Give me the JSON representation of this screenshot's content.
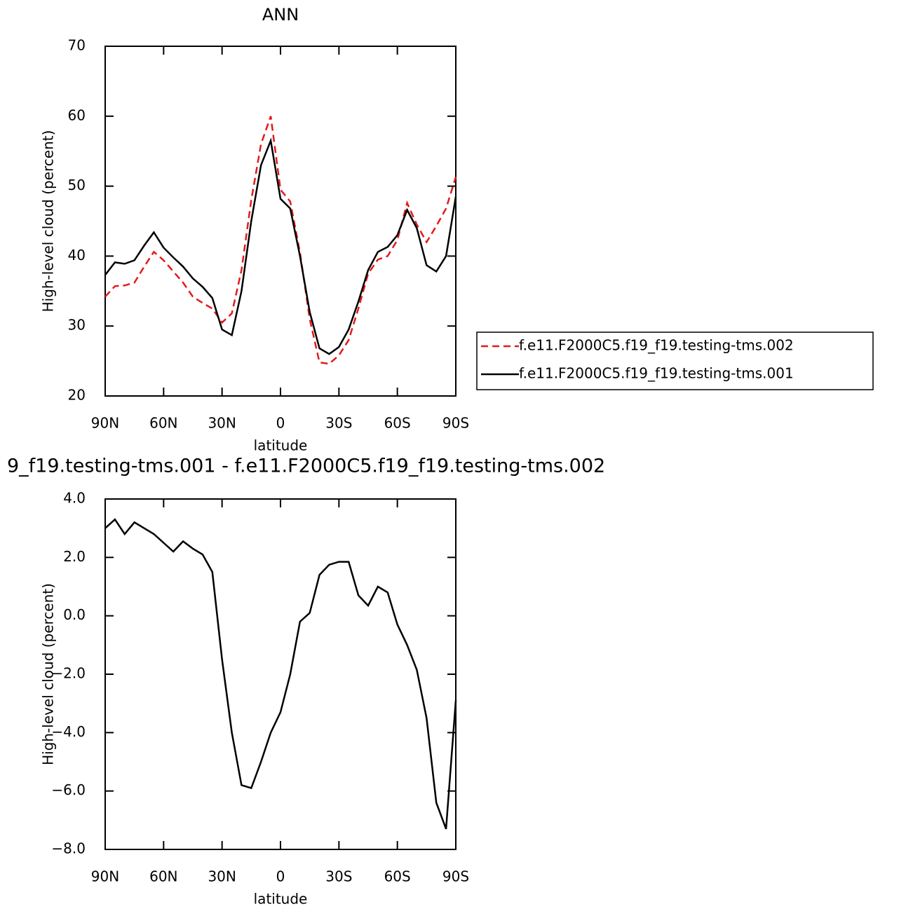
{
  "chart_data": [
    {
      "type": "line",
      "title": "ANN",
      "xlabel": "latitude",
      "ylabel": "High-level cloud (percent)",
      "x": [
        90,
        85,
        80,
        75,
        70,
        65,
        60,
        55,
        50,
        45,
        40,
        35,
        30,
        25,
        20,
        15,
        10,
        5,
        0,
        -5,
        -10,
        -15,
        -20,
        -25,
        -30,
        -35,
        -40,
        -45,
        -50,
        -55,
        -60,
        -65,
        -70,
        -75,
        -80,
        -85,
        -90
      ],
      "series": [
        {
          "name": "f.e11.F2000C5.f19_f19.testing-tms.002",
          "color": "#e41a1c",
          "line_style": "dashed",
          "values": [
            34.2,
            35.7,
            35.8,
            36.2,
            38.5,
            40.6,
            39.4,
            37.8,
            36.2,
            34.2,
            33.3,
            32.5,
            30.5,
            31.8,
            38,
            48,
            56,
            60,
            49.5,
            47.8,
            40.5,
            31,
            24.8,
            24.6,
            25.8,
            28,
            32.5,
            37.5,
            39.5,
            40,
            42.3,
            47.6,
            44.5,
            42,
            44.3,
            46.8,
            51.3
          ]
        },
        {
          "name": "f.e11.F2000C5.f19_f19.testing-tms.001",
          "color": "#000000",
          "line_style": "solid",
          "values": [
            37.3,
            39.1,
            38.9,
            39.4,
            41.5,
            43.4,
            41.2,
            39.8,
            38.5,
            36.8,
            35.6,
            34,
            29.5,
            28.7,
            35,
            45,
            53,
            56.5,
            48.2,
            46.8,
            40,
            32,
            26.8,
            26,
            27,
            29.5,
            33.5,
            38,
            40.6,
            41.3,
            43,
            46.6,
            44,
            38.7,
            37.8,
            40,
            48.5
          ]
        }
      ],
      "xlim": [
        90,
        -90
      ],
      "xticks": [
        {
          "value": 90,
          "label": "90N"
        },
        {
          "value": 60,
          "label": "60N"
        },
        {
          "value": 30,
          "label": "30N"
        },
        0,
        {
          "value": -30,
          "label": "30S"
        },
        {
          "value": -60,
          "label": "60S"
        },
        {
          "value": -90,
          "label": "90S"
        }
      ],
      "ylim": [
        20,
        70
      ],
      "yticks": [
        20,
        30,
        40,
        50,
        60,
        70
      ],
      "legend": "right"
    },
    {
      "type": "line",
      "title": "9_f19.testing-tms.001 - f.e11.F2000C5.f19_f19.testing-tms.002",
      "xlabel": "latitude",
      "ylabel": "High-level cloud (percent)",
      "x": [
        90,
        85,
        80,
        75,
        70,
        65,
        60,
        55,
        50,
        45,
        40,
        35,
        30,
        25,
        20,
        15,
        10,
        5,
        0,
        -5,
        -10,
        -15,
        -20,
        -25,
        -30,
        -35,
        -40,
        -45,
        -50,
        -55,
        -60,
        -65,
        -70,
        -75,
        -80,
        -85,
        -90
      ],
      "series": [
        {
          "color": "#000000",
          "line_style": "solid",
          "values": [
            3.0,
            3.3,
            2.8,
            3.2,
            3.0,
            2.8,
            2.5,
            2.2,
            2.55,
            2.3,
            2.1,
            1.5,
            -1.5,
            -4.0,
            -5.8,
            -5.9,
            -5.0,
            -4.0,
            -3.3,
            -2.0,
            -0.2,
            0.1,
            1.4,
            1.75,
            1.85,
            1.85,
            0.7,
            0.35,
            1.0,
            0.8,
            -0.3,
            -1.0,
            -1.85,
            -3.5,
            -6.4,
            -7.3,
            -2.9
          ]
        }
      ],
      "xlim": [
        90,
        -90
      ],
      "xticks": [
        {
          "value": 90,
          "label": "90N"
        },
        {
          "value": 60,
          "label": "60N"
        },
        {
          "value": 30,
          "label": "30N"
        },
        0,
        {
          "value": -30,
          "label": "30S"
        },
        {
          "value": -60,
          "label": "60S"
        },
        {
          "value": -90,
          "label": "90S"
        }
      ],
      "ylim": [
        -8,
        4
      ],
      "yticks": [
        {
          "value": -8,
          "label": "−8.0"
        },
        {
          "value": -6,
          "label": "−6.0"
        },
        {
          "value": -4,
          "label": "−4.0"
        },
        {
          "value": -2,
          "label": "−2.0"
        },
        {
          "value": 0,
          "label": "0.0"
        },
        {
          "value": 2,
          "label": "2.0"
        },
        {
          "value": 4,
          "label": "4.0"
        }
      ]
    }
  ]
}
